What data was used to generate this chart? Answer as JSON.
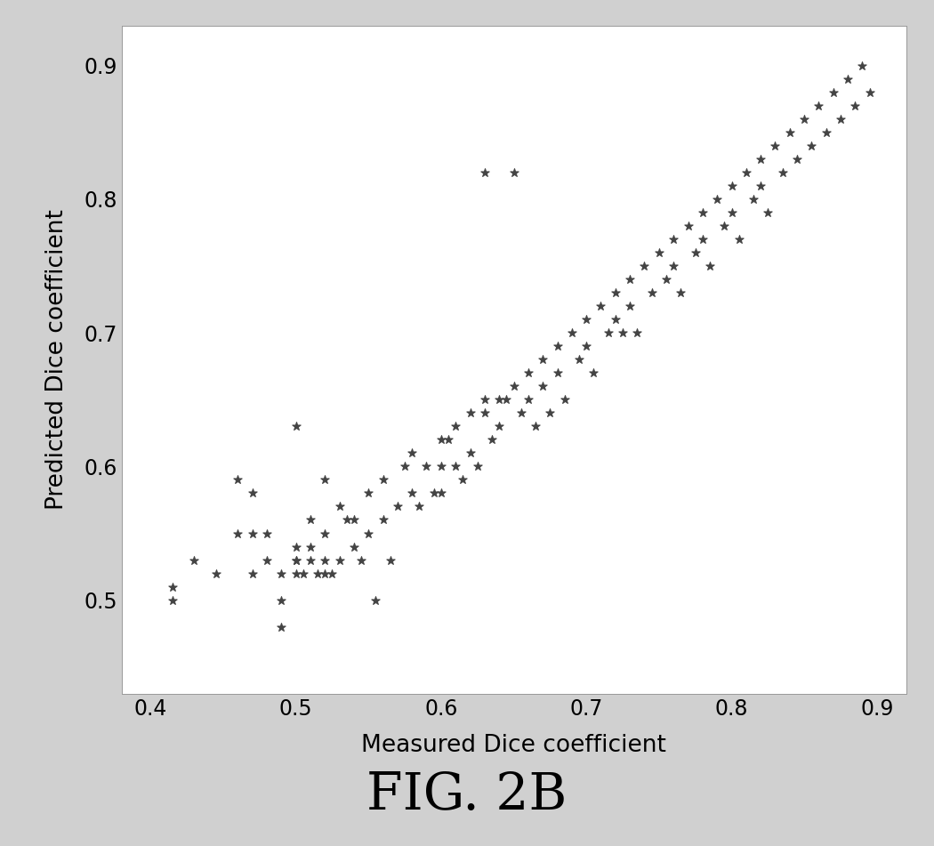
{
  "xlabel": "Measured Dice coefficient",
  "ylabel": "Predicted Dice coefficient",
  "figure_label": "FIG. 2B",
  "xlim": [
    0.38,
    0.92
  ],
  "ylim": [
    0.43,
    0.93
  ],
  "xticks": [
    0.4,
    0.5,
    0.6,
    0.7,
    0.8,
    0.9
  ],
  "yticks": [
    0.5,
    0.6,
    0.7,
    0.8,
    0.9
  ],
  "xtick_labels": [
    "0.4",
    "0.5",
    "0.6",
    "0.7",
    "0.8",
    "0.9"
  ],
  "ytick_labels": [
    "0.5",
    "0.6",
    "0.7",
    "0.8",
    "0.9"
  ],
  "marker": "*",
  "marker_color": "#444444",
  "marker_size": 7,
  "fig_bg_color": "#d0d0d0",
  "plot_bg_color": "#ffffff",
  "scatter_x": [
    0.415,
    0.43,
    0.445,
    0.46,
    0.46,
    0.47,
    0.47,
    0.47,
    0.48,
    0.48,
    0.49,
    0.49,
    0.49,
    0.5,
    0.5,
    0.5,
    0.5,
    0.505,
    0.51,
    0.51,
    0.51,
    0.515,
    0.52,
    0.52,
    0.52,
    0.525,
    0.53,
    0.53,
    0.535,
    0.54,
    0.54,
    0.545,
    0.55,
    0.55,
    0.555,
    0.56,
    0.56,
    0.565,
    0.57,
    0.575,
    0.58,
    0.58,
    0.585,
    0.59,
    0.595,
    0.6,
    0.6,
    0.6,
    0.605,
    0.61,
    0.61,
    0.615,
    0.62,
    0.62,
    0.625,
    0.63,
    0.63,
    0.635,
    0.64,
    0.64,
    0.645,
    0.65,
    0.655,
    0.66,
    0.66,
    0.665,
    0.67,
    0.67,
    0.675,
    0.68,
    0.68,
    0.685,
    0.69,
    0.695,
    0.7,
    0.7,
    0.705,
    0.71,
    0.715,
    0.72,
    0.72,
    0.725,
    0.73,
    0.73,
    0.735,
    0.74,
    0.745,
    0.75,
    0.755,
    0.76,
    0.76,
    0.765,
    0.77,
    0.775,
    0.78,
    0.78,
    0.785,
    0.79,
    0.795,
    0.8,
    0.8,
    0.805,
    0.81,
    0.815,
    0.82,
    0.82,
    0.825,
    0.83,
    0.835,
    0.84,
    0.845,
    0.85,
    0.855,
    0.86,
    0.865,
    0.87,
    0.875,
    0.88,
    0.885,
    0.89,
    0.895,
    0.63,
    0.65,
    0.415,
    0.5,
    0.52
  ],
  "scatter_y": [
    0.51,
    0.53,
    0.52,
    0.59,
    0.55,
    0.52,
    0.55,
    0.58,
    0.53,
    0.55,
    0.48,
    0.5,
    0.52,
    0.52,
    0.53,
    0.54,
    0.53,
    0.52,
    0.53,
    0.54,
    0.56,
    0.52,
    0.52,
    0.53,
    0.55,
    0.52,
    0.53,
    0.57,
    0.56,
    0.54,
    0.56,
    0.53,
    0.55,
    0.58,
    0.5,
    0.56,
    0.59,
    0.53,
    0.57,
    0.6,
    0.58,
    0.61,
    0.57,
    0.6,
    0.58,
    0.6,
    0.62,
    0.58,
    0.62,
    0.63,
    0.6,
    0.59,
    0.64,
    0.61,
    0.6,
    0.64,
    0.65,
    0.62,
    0.65,
    0.63,
    0.65,
    0.66,
    0.64,
    0.67,
    0.65,
    0.63,
    0.68,
    0.66,
    0.64,
    0.69,
    0.67,
    0.65,
    0.7,
    0.68,
    0.71,
    0.69,
    0.67,
    0.72,
    0.7,
    0.73,
    0.71,
    0.7,
    0.74,
    0.72,
    0.7,
    0.75,
    0.73,
    0.76,
    0.74,
    0.77,
    0.75,
    0.73,
    0.78,
    0.76,
    0.79,
    0.77,
    0.75,
    0.8,
    0.78,
    0.81,
    0.79,
    0.77,
    0.82,
    0.8,
    0.83,
    0.81,
    0.79,
    0.84,
    0.82,
    0.85,
    0.83,
    0.86,
    0.84,
    0.87,
    0.85,
    0.88,
    0.86,
    0.89,
    0.87,
    0.9,
    0.88,
    0.82,
    0.82,
    0.5,
    0.63,
    0.59
  ]
}
